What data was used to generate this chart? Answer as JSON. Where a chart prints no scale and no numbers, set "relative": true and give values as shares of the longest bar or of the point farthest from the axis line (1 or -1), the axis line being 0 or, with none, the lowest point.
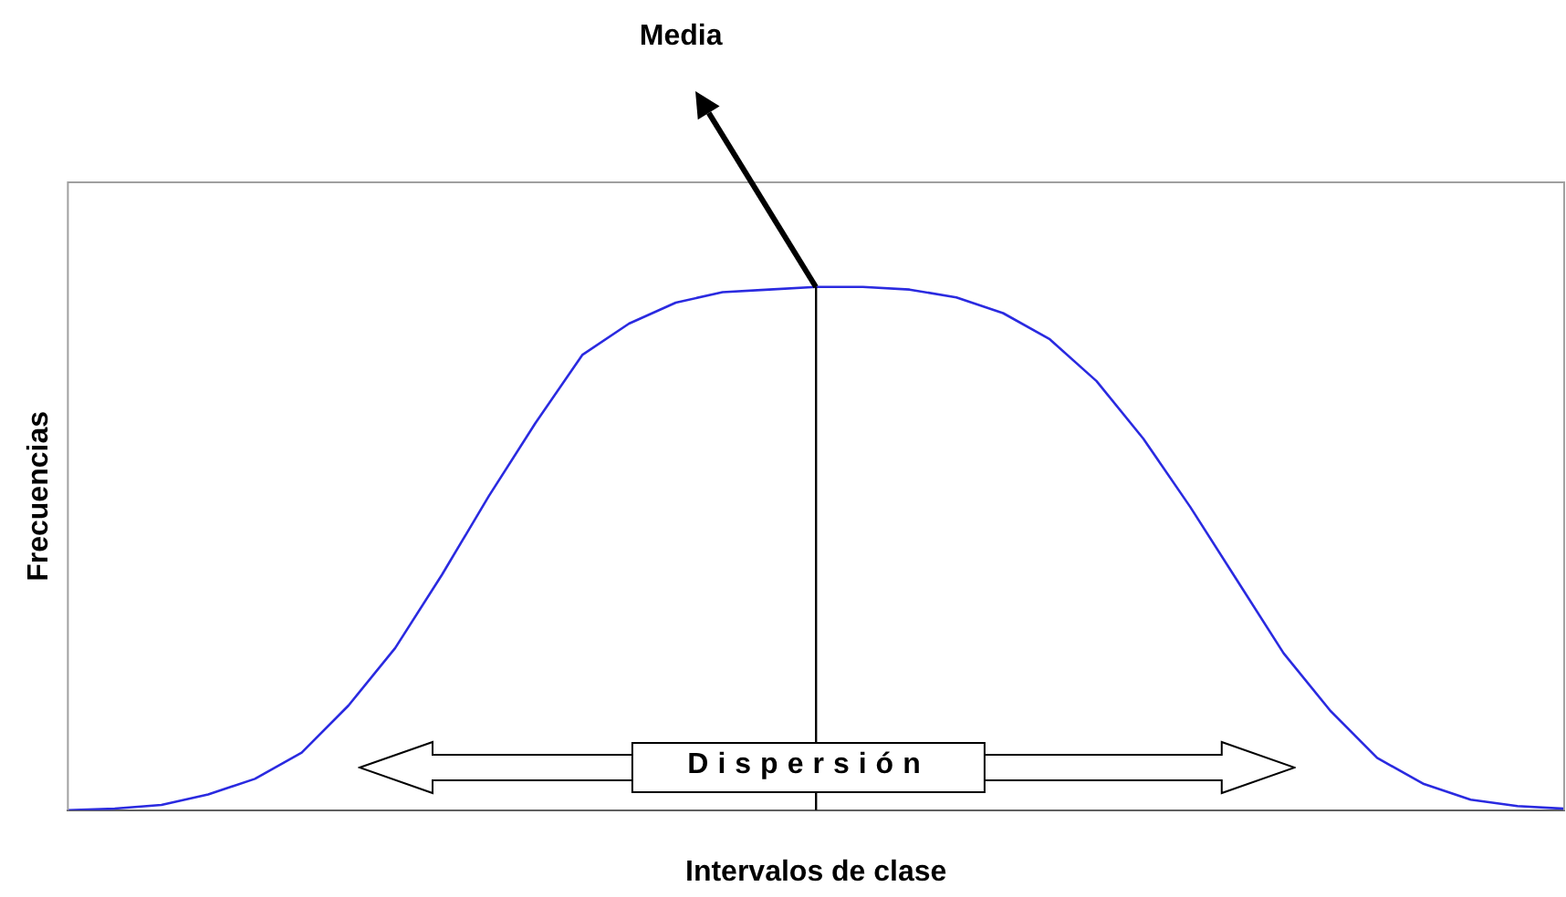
{
  "chart_data": {
    "type": "line",
    "relative": true,
    "xlabel": "Intervalos de clase",
    "ylabel": "Frecuencias",
    "categories": [
      null,
      null,
      null,
      null,
      null,
      null,
      null,
      null,
      null,
      null,
      null,
      null,
      null,
      null,
      null,
      null,
      null,
      null,
      null,
      null,
      null,
      null,
      null,
      null,
      null,
      null,
      null,
      null,
      null,
      null,
      null,
      null,
      null
    ],
    "series": [
      {
        "color": "#2a2ae0",
        "values": [
          0,
          0.003,
          0.01,
          0.03,
          0.06,
          0.11,
          0.2,
          0.31,
          0.45,
          0.6,
          0.74,
          0.87,
          0.93,
          0.97,
          0.99,
          0.995,
          1,
          1,
          0.995,
          0.98,
          0.95,
          0.9,
          0.82,
          0.71,
          0.58,
          0.44,
          0.3,
          0.19,
          0.1,
          0.05,
          0.02,
          0.008,
          0.003
        ]
      }
    ],
    "annotations": [
      "Media",
      "Dispersión"
    ],
    "grid": false,
    "legend": false,
    "marker": "none",
    "line_style": "solid"
  }
}
